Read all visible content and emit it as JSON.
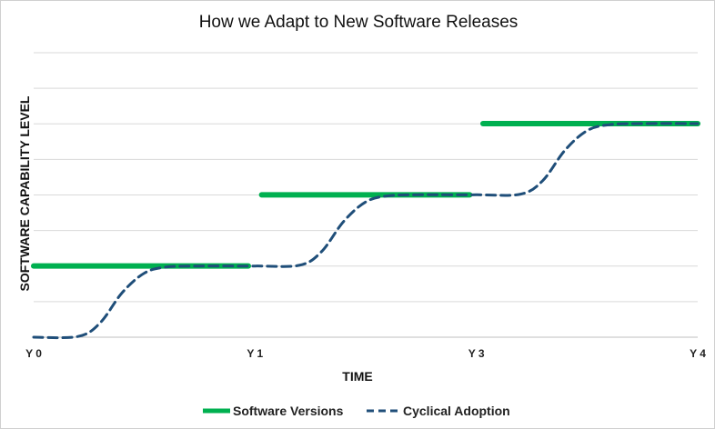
{
  "chart_data": {
    "type": "line",
    "title": "How we Adapt to New Software Releases",
    "xlabel": "TIME",
    "ylabel": "SOFTWARE CAPABILITY LEVEL",
    "x_ticks": [
      "Y 0",
      "Y 1",
      "Y 3",
      "Y 4"
    ],
    "xlim": [
      0,
      3
    ],
    "ylim": [
      0,
      6
    ],
    "y_gridlines": [
      0,
      1,
      2,
      3,
      4,
      5,
      6
    ],
    "series": [
      {
        "name": "Software Versions",
        "style": "solid",
        "color": "#00b050",
        "segments": [
          [
            [
              0,
              2
            ],
            [
              0.97,
              2
            ]
          ],
          [
            [
              1.03,
              4
            ],
            [
              1.97,
              4
            ]
          ],
          [
            [
              2.03,
              6
            ],
            [
              3.0,
              6
            ]
          ]
        ]
      },
      {
        "name": "Cyclical Adoption",
        "style": "dashed",
        "color": "#1f4e79",
        "points": [
          [
            0,
            0
          ],
          [
            0.2,
            0.02
          ],
          [
            0.3,
            0.4
          ],
          [
            0.4,
            1.25
          ],
          [
            0.5,
            1.8
          ],
          [
            0.6,
            1.97
          ],
          [
            0.75,
            2
          ],
          [
            1.0,
            2
          ],
          [
            1.2,
            2.02
          ],
          [
            1.3,
            2.4
          ],
          [
            1.4,
            3.25
          ],
          [
            1.5,
            3.8
          ],
          [
            1.6,
            3.97
          ],
          [
            1.75,
            4
          ],
          [
            2.0,
            4
          ],
          [
            2.2,
            4.02
          ],
          [
            2.3,
            4.4
          ],
          [
            2.4,
            5.25
          ],
          [
            2.5,
            5.8
          ],
          [
            2.6,
            5.97
          ],
          [
            2.75,
            6
          ],
          [
            3.0,
            6
          ]
        ]
      }
    ],
    "legend": "bottom"
  }
}
